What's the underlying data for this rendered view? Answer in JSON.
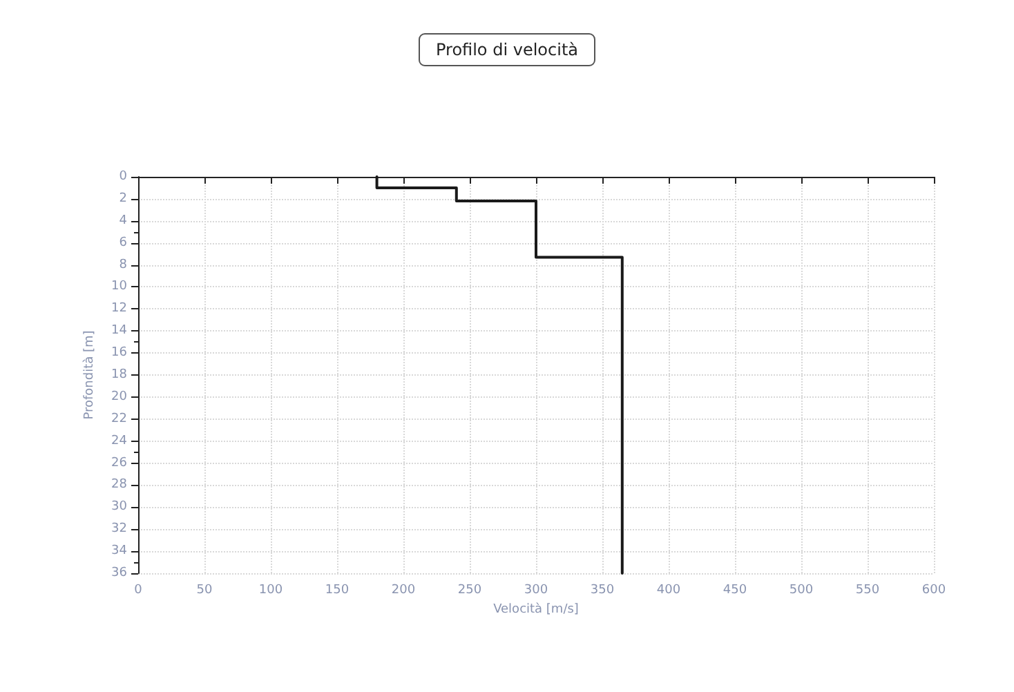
{
  "chart_data": {
    "type": "line",
    "title": "Profilo di velocità",
    "xlabel": "Velocità [m/s]",
    "ylabel": "Profondità [m]",
    "x": [
      180,
      180,
      240,
      240,
      300,
      300,
      365,
      365
    ],
    "series": [
      {
        "color": "#1a1a1a",
        "values": [
          0,
          1,
          1,
          2.2,
          2.2,
          7.3,
          7.3,
          36
        ]
      }
    ],
    "xlim": [
      0,
      600
    ],
    "xticks": [
      0,
      50,
      100,
      150,
      200,
      250,
      300,
      350,
      400,
      450,
      500,
      550,
      600
    ],
    "ylim": [
      36,
      0
    ],
    "yticks": [
      0,
      2,
      4,
      6,
      8,
      10,
      12,
      14,
      16,
      18,
      20,
      22,
      24,
      26,
      28,
      30,
      32,
      34,
      36
    ],
    "grid": true,
    "marker": "none",
    "line_style": "solid"
  }
}
